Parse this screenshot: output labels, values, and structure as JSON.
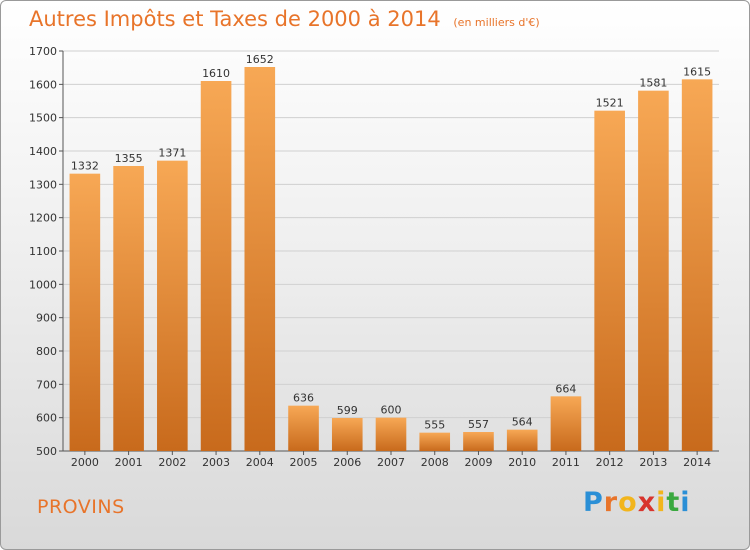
{
  "header": {
    "title": "Autres Impôts et Taxes de 2000 à 2014",
    "unit": "(en milliers d'€)"
  },
  "footer": {
    "place": "PROVINS",
    "logo": "Proxiti"
  },
  "colors": {
    "accent": "#e8742a",
    "bar_light": "#f7a855",
    "bar_dark": "#c86a1c"
  },
  "chart_data": {
    "type": "bar",
    "title": "Autres Impôts et Taxes de 2000 à 2014",
    "subtitle": "(en milliers d'€)",
    "categories": [
      "2000",
      "2001",
      "2002",
      "2003",
      "2004",
      "2005",
      "2006",
      "2007",
      "2008",
      "2009",
      "2010",
      "2011",
      "2012",
      "2013",
      "2014"
    ],
    "values": [
      1332,
      1355,
      1371,
      1610,
      1652,
      636,
      599,
      600,
      555,
      557,
      564,
      664,
      1521,
      1581,
      1615
    ],
    "xlabel": "",
    "ylabel": "",
    "ylim": [
      500,
      1700
    ],
    "yticks": [
      500,
      600,
      700,
      800,
      900,
      1000,
      1100,
      1200,
      1300,
      1400,
      1500,
      1600,
      1700
    ],
    "grid": true,
    "legend": "none"
  }
}
